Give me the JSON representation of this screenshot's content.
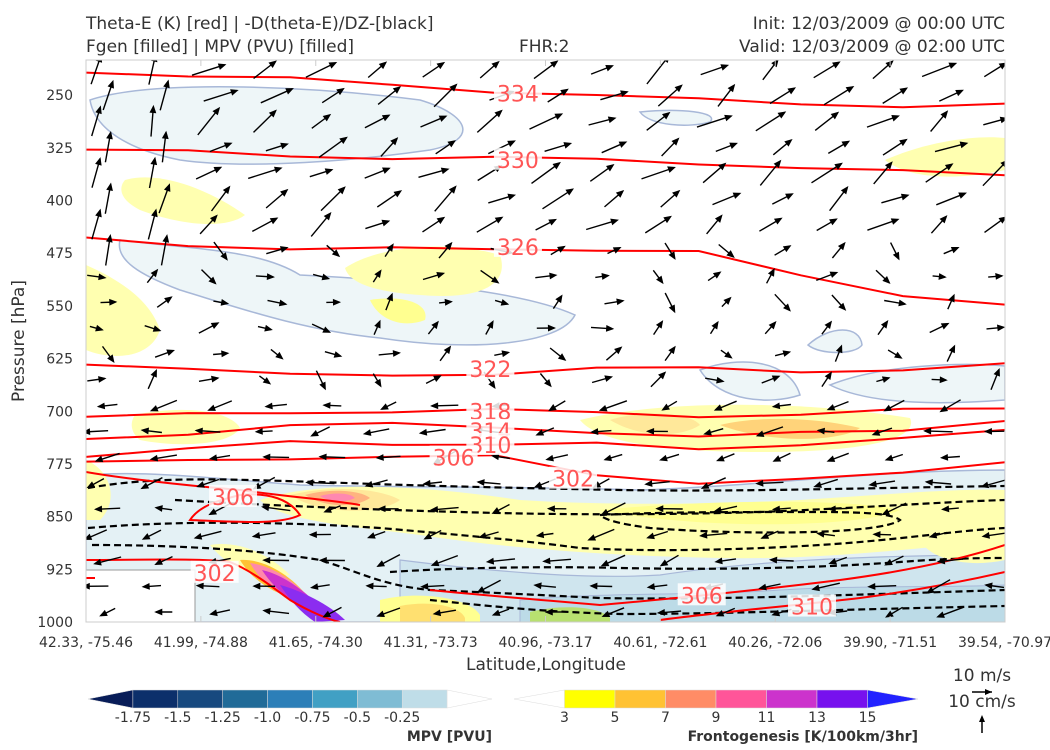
{
  "header": {
    "title_line1": "Theta-E (K) [red] | -D(theta-E)/DZ-[black]",
    "title_line2": "Fgen [filled] | MPV (PVU) [filled]",
    "fhr": "FHR:2",
    "init": "Init: 12/03/2009 @ 00:00 UTC",
    "valid": "Valid: 12/03/2009 @ 02:00 UTC"
  },
  "chart_data": {
    "type": "cross-section",
    "ylabel": "Pressure [hPa]",
    "xlabel": "Latitude,Longitude",
    "ylim": [
      1000,
      200
    ],
    "y_ticks": [
      250,
      325,
      400,
      475,
      550,
      625,
      700,
      775,
      850,
      925,
      1000
    ],
    "x_ticks": [
      "42.33, -75.46",
      "41.99, -74.88",
      "41.65, -74.30",
      "41.31, -73.73",
      "40.96, -73.17",
      "40.61, -72.61",
      "40.26, -72.06",
      "39.90, -71.51",
      "39.54, -70.97"
    ],
    "theta_e_color": "#ff0000",
    "theta_e_labels": [
      {
        "value": "334",
        "x_frac": 0.47,
        "p": 248
      },
      {
        "value": "330",
        "x_frac": 0.47,
        "p": 342
      },
      {
        "value": "326",
        "x_frac": 0.47,
        "p": 466
      },
      {
        "value": "322",
        "x_frac": 0.44,
        "p": 640
      },
      {
        "value": "318",
        "x_frac": 0.44,
        "p": 700
      },
      {
        "value": "314",
        "x_frac": 0.44,
        "p": 728
      },
      {
        "value": "310",
        "x_frac": 0.44,
        "p": 748
      },
      {
        "value": "306",
        "x_frac": 0.4,
        "p": 766
      },
      {
        "value": "302",
        "x_frac": 0.53,
        "p": 796
      },
      {
        "value": "306",
        "x_frac": 0.16,
        "p": 822
      },
      {
        "value": "302",
        "x_frac": 0.14,
        "p": 930
      },
      {
        "value": "306",
        "x_frac": 0.67,
        "p": 962
      },
      {
        "value": "310",
        "x_frac": 0.79,
        "p": 978
      }
    ],
    "theta_e_lines": [
      {
        "value": 334,
        "p": [
          215,
          222,
          228,
          236,
          243,
          250,
          258,
          262,
          264,
          264
        ]
      },
      {
        "value": 330,
        "p": [
          328,
          332,
          336,
          338,
          340,
          343,
          346,
          352,
          360,
          365
        ]
      },
      {
        "value": 326,
        "p": [
          455,
          462,
          468,
          470,
          470,
          468,
          472,
          510,
          535,
          545
        ]
      },
      {
        "value": 322,
        "p": [
          630,
          640,
          650,
          648,
          645,
          640,
          640,
          642,
          640,
          635
        ]
      },
      {
        "value": 318,
        "p": [
          710,
          705,
          700,
          700,
          700,
          702,
          705,
          705,
          700,
          695
        ]
      },
      {
        "value": 314,
        "p": [
          740,
          730,
          720,
          720,
          722,
          728,
          738,
          732,
          725,
          712
        ]
      },
      {
        "value": 310,
        "p": [
          762,
          755,
          745,
          745,
          746,
          748,
          755,
          745,
          738,
          730
        ]
      },
      {
        "value": 306,
        "p": [
          775,
          770,
          765,
          765,
          766,
          790,
          800,
          798,
          790,
          770
        ]
      }
    ],
    "mpv_legend": {
      "label": "MPV [PVU]",
      "ticks": [
        "-1.75",
        "-1.5",
        "-1.25",
        "-1.0",
        "-0.75",
        "-0.5",
        "-0.25"
      ],
      "colors": [
        "#081d58",
        "#0c2f6b",
        "#17497f",
        "#216b98",
        "#2c7fb8",
        "#41a0c4",
        "#7fbcd4",
        "#bfdde8",
        "#ffffff"
      ]
    },
    "fgen_legend": {
      "label": "Frontogenesis [K/100km/3hr]",
      "ticks": [
        "3",
        "5",
        "7",
        "9",
        "11",
        "13",
        "15"
      ],
      "colors": [
        "#ffffff",
        "#ffff00",
        "#ffc233",
        "#ff8c66",
        "#ff5599",
        "#cc33cc",
        "#7711ee",
        "#2222ff"
      ]
    },
    "wind_key": {
      "u": "10 m/s",
      "w": "10 cm/s"
    }
  }
}
